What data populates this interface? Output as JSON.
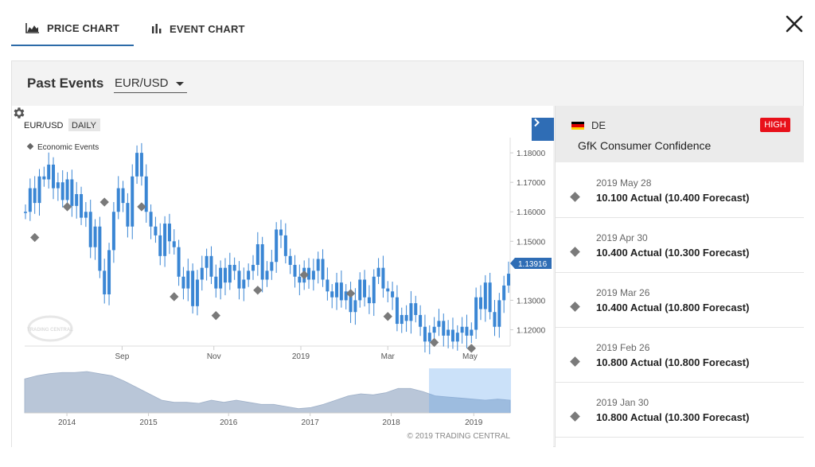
{
  "tabs": [
    {
      "label": "PRICE CHART",
      "icon": "area-chart-icon",
      "active": true
    },
    {
      "label": "EVENT CHART",
      "icon": "bar-chart-icon",
      "active": false
    }
  ],
  "panel": {
    "title": "Past Events",
    "pair_select": {
      "value": "EUR/USD"
    }
  },
  "chart": {
    "symbol": "EUR/USD",
    "interval": "DAILY",
    "legend": "Economic Events",
    "price_label": "1.13916",
    "copyright": "© 2019 TRADING CENTRAL",
    "watermark": "TRADING CENTRAL"
  },
  "chart_data": {
    "type": "line",
    "title": "EUR/USD DAILY",
    "ylim": [
      1.115,
      1.183
    ],
    "yticks": [
      "1.18000",
      "1.17000",
      "1.16000",
      "1.15000",
      "1.13000",
      "1.12000"
    ],
    "xticks": [
      "Sep",
      "Nov",
      "2019",
      "Mar",
      "May"
    ],
    "last_price": 1.13916,
    "series": [
      {
        "name": "EUR/USD",
        "values": [
          1.16,
          1.168,
          1.163,
          1.172,
          1.171,
          1.176,
          1.168,
          1.17,
          1.164,
          1.171,
          1.162,
          1.166,
          1.158,
          1.16,
          1.148,
          1.155,
          1.14,
          1.132,
          1.147,
          1.16,
          1.168,
          1.163,
          1.155,
          1.172,
          1.18,
          1.172,
          1.16,
          1.155,
          1.152,
          1.145,
          1.156,
          1.15,
          1.148,
          1.138,
          1.134,
          1.14,
          1.128,
          1.137,
          1.141,
          1.145,
          1.138,
          1.134,
          1.141,
          1.136,
          1.142,
          1.14,
          1.134,
          1.137,
          1.14,
          1.142,
          1.149,
          1.137,
          1.14,
          1.143,
          1.154,
          1.152,
          1.145,
          1.142,
          1.138,
          1.136,
          1.141,
          1.137,
          1.14,
          1.144,
          1.137,
          1.133,
          1.131,
          1.136,
          1.13,
          1.133,
          1.126,
          1.13,
          1.137,
          1.131,
          1.129,
          1.138,
          1.141,
          1.134,
          1.133,
          1.131,
          1.122,
          1.125,
          1.123,
          1.129,
          1.125,
          1.121,
          1.116,
          1.119,
          1.121,
          1.123,
          1.118,
          1.12,
          1.116,
          1.119,
          1.121,
          1.118,
          1.12,
          1.131,
          1.127,
          1.136,
          1.126,
          1.121,
          1.13,
          1.135,
          1.139
        ]
      }
    ],
    "events": [
      {
        "index": 2,
        "value": 1.1513
      },
      {
        "index": 9,
        "value": 1.1617
      },
      {
        "index": 17,
        "value": 1.1633
      },
      {
        "index": 25,
        "value": 1.1617
      },
      {
        "index": 32,
        "value": 1.1312
      },
      {
        "index": 41,
        "value": 1.1248
      },
      {
        "index": 50,
        "value": 1.1334
      },
      {
        "index": 60,
        "value": 1.1386
      },
      {
        "index": 70,
        "value": 1.1323
      },
      {
        "index": 78,
        "value": 1.1245
      },
      {
        "index": 88,
        "value": 1.1157
      },
      {
        "index": 96,
        "value": 1.1137
      }
    ],
    "navigator": {
      "xticks": [
        "2014",
        "2015",
        "2016",
        "2017",
        "2018",
        "2019"
      ],
      "values": [
        1.32,
        1.35,
        1.37,
        1.38,
        1.38,
        1.39,
        1.37,
        1.35,
        1.3,
        1.24,
        1.18,
        1.12,
        1.1,
        1.1,
        1.09,
        1.12,
        1.1,
        1.12,
        1.1,
        1.08,
        1.08,
        1.06,
        1.04,
        1.05,
        1.08,
        1.12,
        1.16,
        1.18,
        1.17,
        1.19,
        1.23,
        1.23,
        1.2,
        1.16,
        1.15,
        1.14,
        1.13,
        1.12,
        1.13,
        1.12
      ]
    }
  },
  "event_detail": {
    "country": "DE",
    "importance": "HIGH",
    "name": "GfK Consumer Confidence",
    "flag_colors": [
      "#000000",
      "#dd0000",
      "#ffce00"
    ],
    "history": [
      {
        "date": "2019 May 28",
        "actual": "10.100 Actual (10.400 Forecast)"
      },
      {
        "date": "2019 Apr 30",
        "actual": "10.400 Actual (10.300 Forecast)"
      },
      {
        "date": "2019 Mar 26",
        "actual": "10.400 Actual (10.800 Forecast)"
      },
      {
        "date": "2019 Feb 26",
        "actual": "10.800 Actual (10.800 Forecast)"
      },
      {
        "date": "2019 Jan 30",
        "actual": "10.800 Actual (10.300 Forecast)"
      }
    ]
  },
  "colors": {
    "accent": "#2f6db5",
    "price_line": "#3a86d4",
    "high_badge": "#e8101a",
    "event_marker": "#7a7a7a"
  }
}
